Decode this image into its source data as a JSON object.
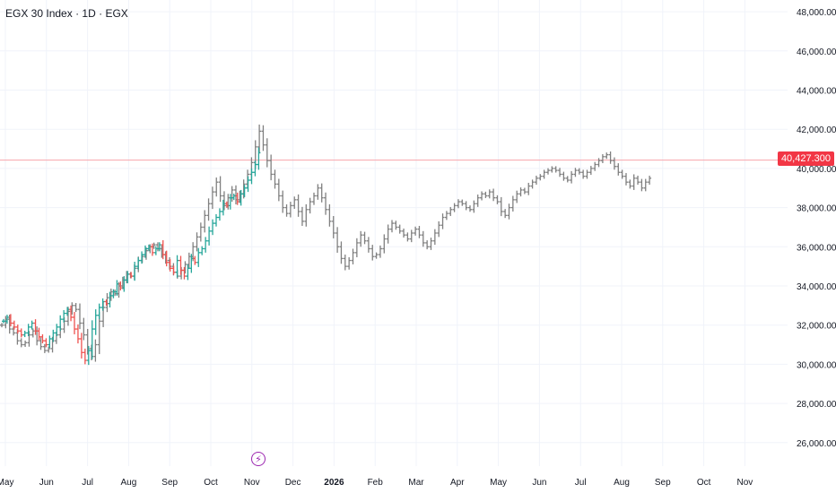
{
  "header": {
    "symbol": "EGX 30 Index",
    "interval": "1D",
    "exchange": "EGX"
  },
  "price_line": {
    "label": "40,427.300",
    "value": 40427.3,
    "color": "#f23645"
  },
  "event_marker": {
    "icon": "lightning-icon",
    "glyph": "⚡",
    "color": "#9c27b0"
  },
  "colors": {
    "up": "#26a69a",
    "down": "#ef5350",
    "projection": "#808080",
    "grid": "#f0f3fa",
    "axis_text": "#131722"
  },
  "chart_data": {
    "type": "ohlc",
    "ylim": [
      24800,
      48600
    ],
    "y_ticks": [
      {
        "value": 48000,
        "label": "48,000.000"
      },
      {
        "value": 46000,
        "label": "46,000.000"
      },
      {
        "value": 44000,
        "label": "44,000.000"
      },
      {
        "value": 42000,
        "label": "42,000.000"
      },
      {
        "value": 40000,
        "label": "40,000.000"
      },
      {
        "value": 38000,
        "label": "38,000.000"
      },
      {
        "value": 36000,
        "label": "36,000.000"
      },
      {
        "value": 34000,
        "label": "34,000.000"
      },
      {
        "value": 32000,
        "label": "32,000.000"
      },
      {
        "value": 30000,
        "label": "30,000.000"
      },
      {
        "value": 28000,
        "label": "28,000.000"
      },
      {
        "value": 26000,
        "label": "26,000.000"
      }
    ],
    "x_ticks": [
      {
        "label": "May",
        "bold": false
      },
      {
        "label": "Jun",
        "bold": false
      },
      {
        "label": "Jul",
        "bold": false
      },
      {
        "label": "Aug",
        "bold": false
      },
      {
        "label": "Sep",
        "bold": false
      },
      {
        "label": "Oct",
        "bold": false
      },
      {
        "label": "Nov",
        "bold": false
      },
      {
        "label": "Dec",
        "bold": false
      },
      {
        "label": "2026",
        "bold": true
      },
      {
        "label": "Feb",
        "bold": false
      },
      {
        "label": "Mar",
        "bold": false
      },
      {
        "label": "Apr",
        "bold": false
      },
      {
        "label": "May",
        "bold": false
      },
      {
        "label": "Jun",
        "bold": false
      },
      {
        "label": "Jul",
        "bold": false
      },
      {
        "label": "Aug",
        "bold": false
      },
      {
        "label": "Sep",
        "bold": false
      },
      {
        "label": "Oct",
        "bold": false
      },
      {
        "label": "Nov",
        "bold": false
      }
    ],
    "month_index": [
      0,
      1,
      2,
      3,
      4,
      5,
      6,
      7,
      8,
      9,
      10,
      11,
      12,
      13,
      14,
      15,
      16,
      17,
      18
    ],
    "actual_series_closes": [
      32200,
      32400,
      32100,
      31900,
      31700,
      31500,
      31600,
      31900,
      32100,
      31700,
      31400,
      31200,
      31000,
      31300,
      31600,
      31900,
      32300,
      32600,
      32800,
      32400,
      31800,
      31300,
      30600,
      30200,
      30700,
      31800,
      32500,
      32900,
      33200,
      33100,
      33500,
      33700,
      34100,
      33900,
      34300,
      34600,
      34500,
      35000,
      35300,
      35600,
      35900,
      36000,
      35700,
      35900,
      36100,
      35600,
      35200,
      34900,
      34700,
      35300,
      34800,
      34500,
      34900,
      35400,
      35200,
      35700,
      35900,
      36300,
      36800,
      37200,
      37500,
      37800,
      38200,
      38100,
      38500,
      38600,
      38300,
      38700,
      39000,
      39400,
      39800,
      40200,
      40800
    ],
    "projection_series_closes": [
      32000,
      32300,
      31800,
      31600,
      31200,
      31000,
      31100,
      31500,
      31700,
      31200,
      30900,
      30700,
      30800,
      31200,
      31500,
      31800,
      32200,
      32700,
      33000,
      32800,
      32100,
      31500,
      30800,
      30400,
      31000,
      32200,
      32900,
      33400,
      33700,
      33600,
      34000,
      34300,
      34600,
      34500,
      34900,
      35300,
      35500,
      35800,
      36000,
      36100,
      35900,
      35600,
      35300,
      35000,
      34700,
      34500,
      34800,
      35100,
      35500,
      36000,
      36500,
      37000,
      37600,
      38200,
      38800,
      39300,
      38600,
      38100,
      38500,
      38900,
      38400,
      38700,
      39200,
      39700,
      40300,
      41100,
      41900,
      41200,
      40400,
      39700,
      39200,
      38600,
      38000,
      37700,
      38100,
      38400,
      37800,
      37300,
      37900,
      38300,
      38600,
      39000,
      38500,
      37900,
      37300,
      36700,
      36000,
      35400,
      35000,
      35300,
      35700,
      36200,
      36600,
      36300,
      35900,
      35500,
      35600,
      35900,
      36400,
      36900,
      37200,
      37000,
      36800,
      36600,
      36400,
      36700,
      36900,
      36600,
      36200,
      36000,
      36300,
      36700,
      37100,
      37500,
      37700,
      37900,
      38100,
      38300,
      38200,
      38000,
      37900,
      38200,
      38500,
      38700,
      38600,
      38800,
      38500,
      38300,
      37800,
      37600,
      38000,
      38400,
      38700,
      38900,
      38800,
      39100,
      39300,
      39500,
      39600,
      39800,
      39900,
      40000,
      39900,
      39700,
      39500,
      39400,
      39700,
      39900,
      39800,
      39600,
      39800,
      40000,
      40200,
      40400,
      40600,
      40700,
      40400,
      40100,
      39800,
      39600,
      39300,
      39100,
      39500,
      39300,
      39000,
      39300,
      39500
    ]
  }
}
